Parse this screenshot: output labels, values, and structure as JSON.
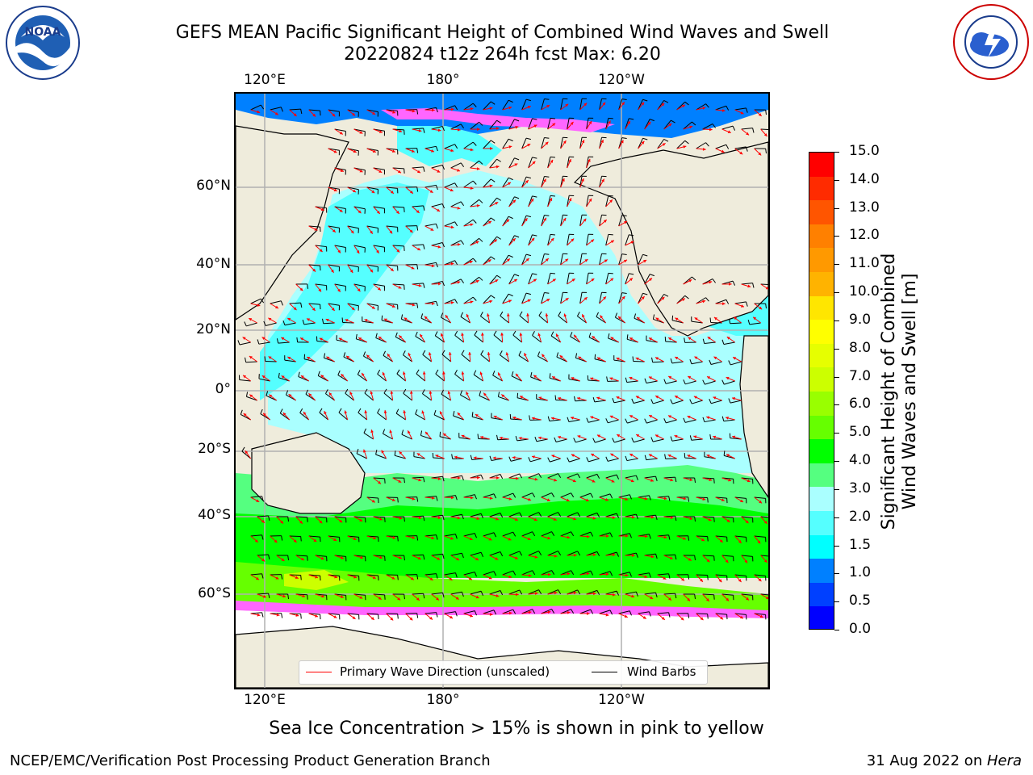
{
  "title": {
    "line1": "GEFS MEAN Pacific Significant Height of Combined Wind Waves and Swell",
    "line2": "20220824 t12z 264h fcst   Max: 6.20"
  },
  "axes": {
    "top_ticks": [
      "120°E",
      "180°",
      "120°W"
    ],
    "bottom_ticks": [
      "120°E",
      "180°",
      "120°W"
    ],
    "left_ticks": [
      "60°N",
      "40°N",
      "20°N",
      "0°",
      "20°S",
      "40°S",
      "60°S"
    ]
  },
  "legend": {
    "items": [
      {
        "label": "Primary Wave Direction (unscaled)",
        "color": "#ff0000"
      },
      {
        "label": "Wind Barbs",
        "color": "#000000"
      }
    ]
  },
  "colorbar": {
    "label_line1": "Significant Height of Combined",
    "label_line2": "Wind Waves and Swell [m]",
    "ticks": [
      "15.0",
      "14.0",
      "13.0",
      "12.0",
      "11.0",
      "10.0",
      "9.0",
      "8.0",
      "7.0",
      "6.0",
      "5.0",
      "4.0",
      "3.0",
      "2.0",
      "1.5",
      "1.0",
      "0.5",
      "0.0"
    ],
    "colors_top_to_bottom": [
      "#ff0000",
      "#ff2b00",
      "#ff5500",
      "#ff8000",
      "#ff9900",
      "#ffb300",
      "#ffe600",
      "#ffff00",
      "#e6ff00",
      "#ccff00",
      "#99ff00",
      "#66ff00",
      "#00ff00",
      "#55ff80",
      "#aaffff",
      "#55ffff",
      "#00ffff",
      "#0080ff",
      "#0040ff",
      "#0000ff"
    ]
  },
  "map_colors": {
    "land": "#efecdc",
    "ocean_low": "#aaffff",
    "ocean_mid": "#55ffff",
    "ocean_shallow": "#0080ff",
    "ocean_high": "#66ff00",
    "ocean_peak": "#00ff00",
    "ice_pink": "#ff66ff",
    "ice_white": "#ffffff"
  },
  "note": "Sea Ice Concentration > 15% is shown in pink to yellow",
  "footer": {
    "left": "NCEP/EMC/Verification Post Processing Product Generation Branch",
    "right_date": "31 Aug 2022 on ",
    "right_host": "Hera"
  },
  "logos": {
    "noaa_text": "NOAA",
    "nws_text": "NATIONAL WEATHER SERVICE"
  }
}
